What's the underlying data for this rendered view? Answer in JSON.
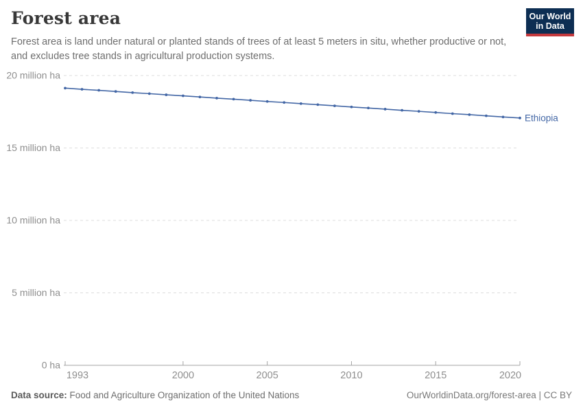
{
  "header": {
    "title": "Forest area",
    "subtitle": "Forest area is land under natural or planted stands of trees of at least 5 meters in situ, whether productive or not, and excludes tree stands in agricultural production systems.",
    "logo": {
      "line1": "Our World",
      "line2": "in Data"
    }
  },
  "chart_data": {
    "type": "line",
    "title": "Forest area",
    "entity": "Ethiopia",
    "ylabel": "",
    "xlabel": "",
    "unit": "million ha",
    "xlim": [
      1993,
      2020
    ],
    "ylim": [
      0,
      20
    ],
    "grid": "horizontal-dashed",
    "legend_position": "end-of-line",
    "x": [
      1993,
      1994,
      1995,
      1996,
      1997,
      1998,
      1999,
      2000,
      2001,
      2002,
      2003,
      2004,
      2005,
      2006,
      2007,
      2008,
      2009,
      2010,
      2011,
      2012,
      2013,
      2014,
      2015,
      2016,
      2017,
      2018,
      2019,
      2020
    ],
    "series": [
      {
        "name": "Ethiopia",
        "color": "#4266a5",
        "values": [
          19.13,
          19.05,
          18.98,
          18.9,
          18.82,
          18.75,
          18.67,
          18.6,
          18.52,
          18.44,
          18.37,
          18.29,
          18.21,
          18.14,
          18.06,
          17.99,
          17.91,
          17.83,
          17.76,
          17.68,
          17.6,
          17.53,
          17.45,
          17.37,
          17.3,
          17.22,
          17.14,
          17.07
        ]
      }
    ],
    "xticks": [
      1993,
      2000,
      2005,
      2010,
      2015,
      2020
    ],
    "yticks": [
      {
        "value": 0,
        "label": "0 ha"
      },
      {
        "value": 5,
        "label": "5 million ha"
      },
      {
        "value": 10,
        "label": "10 million ha"
      },
      {
        "value": 15,
        "label": "15 million ha"
      },
      {
        "value": 20,
        "label": "20 million ha"
      }
    ]
  },
  "footer": {
    "datasource_label": "Data source:",
    "datasource_value": "Food and Agriculture Organization of the United Nations",
    "attribution": "OurWorldinData.org/forest-area | CC BY"
  },
  "colors": {
    "line": "#4266a5",
    "logo_bg": "#0d2e53",
    "logo_red": "#c4393d",
    "axis_text": "#8e8e8e",
    "grid_line": "#dcdcdc",
    "axis_line": "#a3a3a3"
  }
}
